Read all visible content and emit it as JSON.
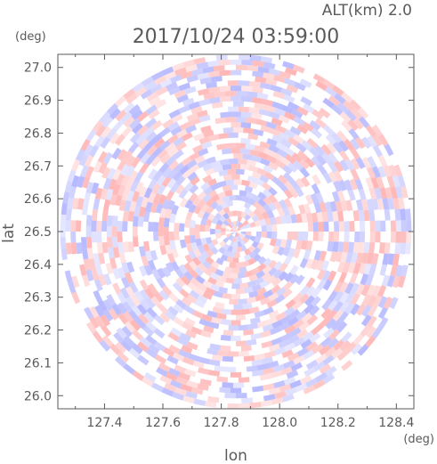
{
  "chart_data": {
    "type": "heatmap",
    "title": "2017/10/24 03:59:00",
    "altitude_label": "ALT(km) 2.0",
    "xlabel": "lon",
    "ylabel": "lat",
    "x_unit": "(deg)",
    "y_unit": "(deg)",
    "xlim": [
      127.24,
      128.46
    ],
    "ylim": [
      25.96,
      27.04
    ],
    "x_ticks": [
      127.4,
      127.6,
      127.8,
      128.0,
      128.2,
      128.4
    ],
    "x_tick_labels": [
      "127.4",
      "127.6",
      "127.8",
      "128.0",
      "128.2",
      "128.4"
    ],
    "y_ticks": [
      26.0,
      26.1,
      26.2,
      26.3,
      26.4,
      26.5,
      26.6,
      26.7,
      26.8,
      26.9,
      27.0
    ],
    "y_tick_labels": [
      "26.0",
      "26.1",
      "26.2",
      "26.3",
      "26.4",
      "26.5",
      "26.6",
      "26.7",
      "26.8",
      "26.9",
      "27.0"
    ],
    "radar_center": {
      "lon": 127.85,
      "lat": 26.5
    },
    "radar_radius_deg": {
      "lon": 0.602,
      "lat": 0.54
    },
    "colors": {
      "positive": "#ff9e9e",
      "negative": "#9ea2ff",
      "neutral": "#ffffff",
      "axis": "#5a5a5a"
    },
    "grid": false
  }
}
